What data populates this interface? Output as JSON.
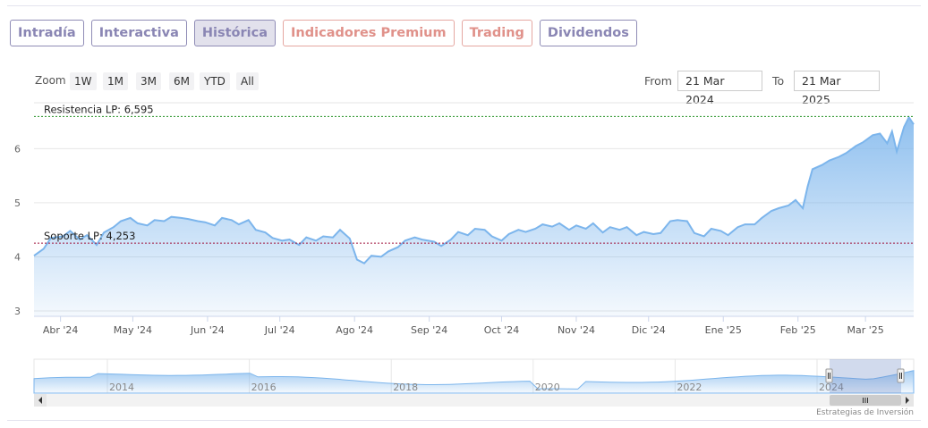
{
  "tabs": [
    {
      "label": "Intradía",
      "active": false,
      "style": "normal"
    },
    {
      "label": "Interactiva",
      "active": false,
      "style": "normal"
    },
    {
      "label": "Histórica",
      "active": true,
      "style": "normal"
    },
    {
      "label": "Indicadores Premium",
      "active": false,
      "style": "premium"
    },
    {
      "label": "Trading",
      "active": false,
      "style": "premium"
    },
    {
      "label": "Dividendos",
      "active": false,
      "style": "normal"
    }
  ],
  "zoom": {
    "label": "Zoom",
    "buttons": [
      "1W",
      "1M",
      "3M",
      "6M",
      "YTD",
      "All"
    ]
  },
  "range": {
    "from_label": "From",
    "from_value": "21 Mar 2024",
    "to_label": "To",
    "to_value": "21 Mar 2025"
  },
  "credit": "Estrategias de Inversión",
  "colors": {
    "line": "#7cb5ec",
    "resistance": "#1e8e1e",
    "support": "#a0143c",
    "tab": "#8a86b4",
    "tab_premium": "#e0918a"
  },
  "chart_data": {
    "type": "area",
    "ylim": [
      2.9,
      6.85
    ],
    "yticks": [
      3,
      4,
      5,
      6
    ],
    "xlim": [
      "2024-03-21",
      "2025-03-21"
    ],
    "xticks": [
      {
        "label": "Abr '24",
        "date": "2024-04-01"
      },
      {
        "label": "May '24",
        "date": "2024-05-01"
      },
      {
        "label": "Jun '24",
        "date": "2024-06-01"
      },
      {
        "label": "Jul '24",
        "date": "2024-07-01"
      },
      {
        "label": "Ago '24",
        "date": "2024-08-01"
      },
      {
        "label": "Sep '24",
        "date": "2024-09-01"
      },
      {
        "label": "Oct '24",
        "date": "2024-10-01"
      },
      {
        "label": "Nov '24",
        "date": "2024-11-01"
      },
      {
        "label": "Dic '24",
        "date": "2024-12-01"
      },
      {
        "label": "Ene '25",
        "date": "2025-01-01"
      },
      {
        "label": "Feb '25",
        "date": "2025-02-01"
      },
      {
        "label": "Mar '25",
        "date": "2025-03-01"
      }
    ],
    "plotlines": [
      {
        "label": "Resistencia LP: 6,595",
        "value": 6.595,
        "color": "#1e8e1e"
      },
      {
        "label": "Soporte LP: 4,253",
        "value": 4.253,
        "color": "#a0143c"
      }
    ],
    "series": [
      {
        "x": [
          "2024-03-21",
          "2024-03-25",
          "2024-03-28",
          "2024-04-02",
          "2024-04-05",
          "2024-04-09",
          "2024-04-12",
          "2024-04-16",
          "2024-04-19",
          "2024-04-23",
          "2024-04-26",
          "2024-04-30",
          "2024-05-03",
          "2024-05-07",
          "2024-05-10",
          "2024-05-14",
          "2024-05-17",
          "2024-05-21",
          "2024-05-24",
          "2024-05-28",
          "2024-05-31",
          "2024-06-04",
          "2024-06-07",
          "2024-06-11",
          "2024-06-14",
          "2024-06-18",
          "2024-06-21",
          "2024-06-25",
          "2024-06-28",
          "2024-07-02",
          "2024-07-05",
          "2024-07-09",
          "2024-07-12",
          "2024-07-16",
          "2024-07-19",
          "2024-07-23",
          "2024-07-26",
          "2024-07-30",
          "2024-08-02",
          "2024-08-05",
          "2024-08-08",
          "2024-08-12",
          "2024-08-15",
          "2024-08-19",
          "2024-08-22",
          "2024-08-26",
          "2024-08-29",
          "2024-09-03",
          "2024-09-06",
          "2024-09-10",
          "2024-09-13",
          "2024-09-17",
          "2024-09-20",
          "2024-09-24",
          "2024-09-27",
          "2024-10-01",
          "2024-10-04",
          "2024-10-08",
          "2024-10-11",
          "2024-10-15",
          "2024-10-18",
          "2024-10-22",
          "2024-10-25",
          "2024-10-29",
          "2024-11-01",
          "2024-11-05",
          "2024-11-08",
          "2024-11-12",
          "2024-11-15",
          "2024-11-19",
          "2024-11-22",
          "2024-11-26",
          "2024-11-29",
          "2024-12-03",
          "2024-12-06",
          "2024-12-10",
          "2024-12-13",
          "2024-12-17",
          "2024-12-20",
          "2024-12-24",
          "2024-12-27",
          "2024-12-31",
          "2025-01-03",
          "2025-01-07",
          "2025-01-10",
          "2025-01-14",
          "2025-01-17",
          "2025-01-21",
          "2025-01-24",
          "2025-01-28",
          "2025-01-31",
          "2025-02-03",
          "2025-02-05",
          "2025-02-07",
          "2025-02-11",
          "2025-02-14",
          "2025-02-18",
          "2025-02-21",
          "2025-02-25",
          "2025-02-28",
          "2025-03-04",
          "2025-03-07",
          "2025-03-10",
          "2025-03-12",
          "2025-03-14",
          "2025-03-17",
          "2025-03-19",
          "2025-03-21"
        ],
        "y": [
          4.02,
          4.15,
          4.35,
          4.38,
          4.48,
          4.32,
          4.4,
          4.22,
          4.45,
          4.55,
          4.66,
          4.72,
          4.62,
          4.58,
          4.68,
          4.66,
          4.74,
          4.72,
          4.7,
          4.66,
          4.64,
          4.58,
          4.72,
          4.68,
          4.6,
          4.68,
          4.5,
          4.45,
          4.35,
          4.3,
          4.32,
          4.22,
          4.36,
          4.3,
          4.38,
          4.36,
          4.5,
          4.34,
          3.95,
          3.88,
          4.02,
          4.0,
          4.1,
          4.18,
          4.3,
          4.36,
          4.32,
          4.28,
          4.2,
          4.32,
          4.46,
          4.4,
          4.52,
          4.5,
          4.38,
          4.3,
          4.42,
          4.5,
          4.46,
          4.52,
          4.6,
          4.56,
          4.62,
          4.5,
          4.58,
          4.52,
          4.62,
          4.45,
          4.55,
          4.5,
          4.55,
          4.4,
          4.46,
          4.42,
          4.44,
          4.66,
          4.68,
          4.66,
          4.44,
          4.38,
          4.52,
          4.48,
          4.4,
          4.55,
          4.6,
          4.6,
          4.72,
          4.85,
          4.9,
          4.95,
          5.05,
          4.9,
          5.3,
          5.62,
          5.7,
          5.78,
          5.85,
          5.92,
          6.05,
          6.12,
          6.25,
          6.28,
          6.1,
          6.32,
          5.95,
          6.4,
          6.58,
          6.45
        ]
      }
    ],
    "navigator": {
      "xticks": [
        "2014",
        "2016",
        "2018",
        "2020",
        "2022",
        "2024"
      ]
    }
  }
}
